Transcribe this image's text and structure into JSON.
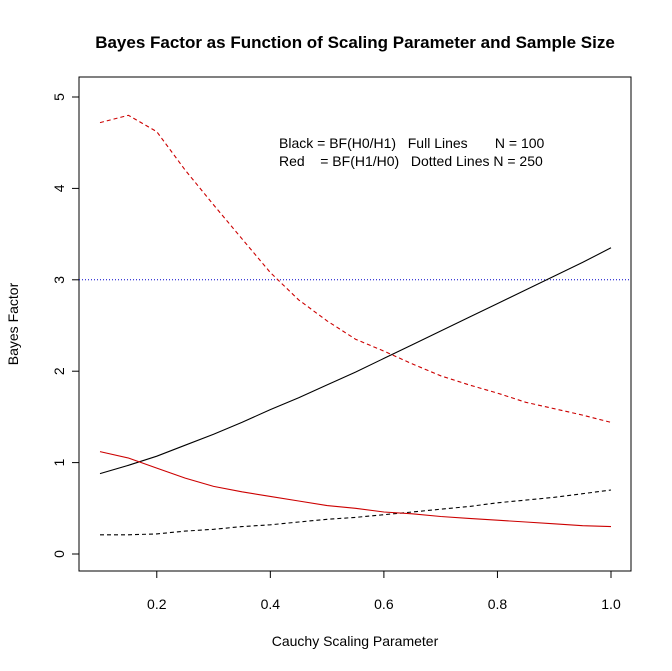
{
  "chart_data": {
    "type": "line",
    "title": "Bayes Factor as Function of Scaling Parameter and Sample Size",
    "xlabel": "Cauchy Scaling Parameter",
    "ylabel": "Bayes Factor",
    "xlim": [
      0.1,
      1.0
    ],
    "ylim": [
      0,
      5
    ],
    "x_ticks": [
      0.2,
      0.4,
      0.6,
      0.8,
      1.0
    ],
    "x_tick_labels": [
      "0.2",
      "0.4",
      "0.6",
      "0.8",
      "1.0"
    ],
    "y_ticks": [
      0,
      1,
      2,
      3,
      4,
      5
    ],
    "y_tick_labels": [
      "0",
      "1",
      "2",
      "3",
      "4",
      "5"
    ],
    "legend": {
      "line1": "Black = BF(H0/H1)   Full Lines       N = 100",
      "line2": "Red    = BF(H1/H0)   Dotted Lines N = 250"
    },
    "reference_line": {
      "y": 3,
      "style": "dotted",
      "color": "#0000cc"
    },
    "x": [
      0.1,
      0.15,
      0.2,
      0.25,
      0.3,
      0.35,
      0.4,
      0.45,
      0.5,
      0.55,
      0.6,
      0.65,
      0.7,
      0.75,
      0.8,
      0.85,
      0.9,
      0.95,
      1.0
    ],
    "series": [
      {
        "name": "BF(H0/H1) N = 100",
        "color": "#000000",
        "dash": "solid",
        "values": [
          0.88,
          0.97,
          1.07,
          1.19,
          1.31,
          1.44,
          1.58,
          1.71,
          1.85,
          1.99,
          2.14,
          2.29,
          2.44,
          2.59,
          2.74,
          2.89,
          3.04,
          3.19,
          3.35
        ]
      },
      {
        "name": "BF(H0/H1) N = 250",
        "color": "#000000",
        "dash": "dashed",
        "values": [
          0.21,
          0.21,
          0.22,
          0.25,
          0.27,
          0.3,
          0.32,
          0.35,
          0.38,
          0.4,
          0.43,
          0.46,
          0.49,
          0.52,
          0.56,
          0.59,
          0.62,
          0.66,
          0.7
        ]
      },
      {
        "name": "BF(H1/H0) N = 100",
        "color": "#cc0000",
        "dash": "solid",
        "values": [
          1.12,
          1.05,
          0.94,
          0.83,
          0.74,
          0.68,
          0.63,
          0.58,
          0.53,
          0.5,
          0.46,
          0.44,
          0.41,
          0.39,
          0.37,
          0.35,
          0.33,
          0.31,
          0.3
        ]
      },
      {
        "name": "BF(H1/H0) N = 250",
        "color": "#cc0000",
        "dash": "dashed",
        "values": [
          4.72,
          4.8,
          4.62,
          4.2,
          3.82,
          3.45,
          3.08,
          2.78,
          2.55,
          2.35,
          2.22,
          2.08,
          1.95,
          1.85,
          1.76,
          1.66,
          1.59,
          1.52,
          1.44
        ]
      }
    ]
  }
}
